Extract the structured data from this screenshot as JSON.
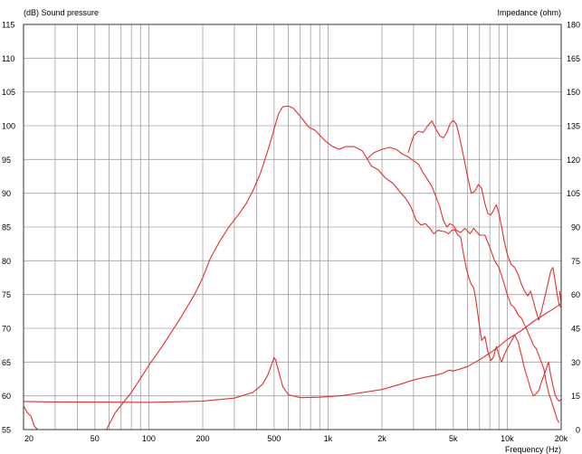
{
  "chart_data": {
    "type": "line",
    "ylabel_left": "(dB)  Sound pressure",
    "ylabel_right": "Impedance  (ohm)",
    "xlabel": "Frequency  (Hz)",
    "x_scale": "log",
    "xlim": [
      20,
      20000
    ],
    "ylim_left": [
      55,
      115
    ],
    "ylim_right": [
      0,
      180
    ],
    "grid": true,
    "line_color": "#e0302e",
    "grid_color": "#a0a0a0",
    "left_ticks": [
      "115",
      "110",
      "105",
      "100",
      "95",
      "90",
      "85",
      "80",
      "75",
      "70",
      "65",
      "60",
      "55"
    ],
    "right_ticks": [
      "180",
      "165",
      "150",
      "135",
      "120",
      "105",
      "90",
      "75",
      "60",
      "45",
      "30",
      "15",
      "0"
    ],
    "x_ticks": [
      {
        "value": 20,
        "label": "20"
      },
      {
        "value": 50,
        "label": "50"
      },
      {
        "value": 100,
        "label": "100"
      },
      {
        "value": 200,
        "label": "200"
      },
      {
        "value": 500,
        "label": "500"
      },
      {
        "value": 1000,
        "label": "1k"
      },
      {
        "value": 2000,
        "label": "2k"
      },
      {
        "value": 5000,
        "label": "5k"
      },
      {
        "value": 10000,
        "label": "10k"
      },
      {
        "value": 20000,
        "label": "20k"
      }
    ],
    "series": [
      {
        "axis": "left",
        "points": [
          [
            58,
            55
          ],
          [
            65,
            57.5
          ],
          [
            80,
            60.5
          ],
          [
            100,
            64.5
          ],
          [
            120,
            67.5
          ],
          [
            150,
            71.5
          ],
          [
            180,
            75
          ],
          [
            200,
            77.5
          ],
          [
            220,
            80.3
          ],
          [
            250,
            83
          ],
          [
            280,
            85
          ],
          [
            320,
            87
          ],
          [
            350,
            88.5
          ],
          [
            380,
            90.3
          ],
          [
            420,
            93
          ],
          [
            470,
            97
          ],
          [
            500,
            99.5
          ],
          [
            530,
            101.8
          ],
          [
            560,
            102.8
          ],
          [
            600,
            102.9
          ],
          [
            640,
            102.6
          ],
          [
            680,
            101.8
          ],
          [
            720,
            101
          ],
          [
            780,
            99.8
          ],
          [
            850,
            99.3
          ],
          [
            900,
            98.6
          ],
          [
            960,
            97.8
          ],
          [
            1050,
            97
          ],
          [
            1150,
            96.5
          ],
          [
            1250,
            96.9
          ],
          [
            1400,
            96.9
          ],
          [
            1550,
            96.3
          ],
          [
            1650,
            95.1
          ],
          [
            1800,
            96
          ],
          [
            2000,
            96.5
          ],
          [
            2200,
            96.8
          ],
          [
            2400,
            96.5
          ],
          [
            2600,
            95.8
          ],
          [
            2800,
            95.4
          ],
          [
            3000,
            94.8
          ],
          [
            3200,
            94.3
          ],
          [
            3400,
            93
          ],
          [
            3600,
            92
          ],
          [
            3800,
            91
          ],
          [
            4000,
            89.5
          ],
          [
            4200,
            88
          ],
          [
            4400,
            86
          ],
          [
            4600,
            85
          ],
          [
            4800,
            85.5
          ],
          [
            5000,
            85.2
          ],
          [
            5200,
            84.5
          ],
          [
            5500,
            84.2
          ],
          [
            5800,
            84.8
          ],
          [
            6200,
            84
          ],
          [
            6500,
            84.8
          ],
          [
            7000,
            83.8
          ],
          [
            7500,
            83.8
          ],
          [
            8000,
            82
          ],
          [
            8500,
            80
          ],
          [
            9000,
            79
          ],
          [
            9500,
            77
          ],
          [
            10000,
            75
          ],
          [
            10500,
            73.5
          ],
          [
            11000,
            73
          ],
          [
            11500,
            72
          ],
          [
            12000,
            71.5
          ],
          [
            12500,
            70.5
          ],
          [
            13000,
            69.5
          ],
          [
            13500,
            68.5
          ],
          [
            14000,
            67.5
          ],
          [
            14500,
            67
          ],
          [
            15000,
            66
          ],
          [
            15500,
            65
          ],
          [
            16000,
            64
          ],
          [
            16500,
            62
          ],
          [
            17000,
            60.5
          ],
          [
            17500,
            59.5
          ],
          [
            18000,
            58.5
          ],
          [
            18500,
            57.5
          ],
          [
            19000,
            56.5
          ],
          [
            19500,
            56
          ]
        ]
      },
      {
        "axis": "left",
        "points": [
          [
            1650,
            95.1
          ],
          [
            1750,
            94
          ],
          [
            1900,
            93.5
          ],
          [
            2100,
            92.2
          ],
          [
            2300,
            91.5
          ],
          [
            2500,
            90.3
          ],
          [
            2700,
            89.3
          ],
          [
            2900,
            88
          ],
          [
            3100,
            86
          ],
          [
            3300,
            85.3
          ],
          [
            3500,
            85.5
          ],
          [
            3700,
            84.8
          ],
          [
            3900,
            84
          ],
          [
            4100,
            84.5
          ],
          [
            4300,
            84.4
          ],
          [
            4500,
            84.3
          ],
          [
            4700,
            84
          ],
          [
            4900,
            84.5
          ],
          [
            5100,
            84.6
          ],
          [
            5300,
            83.8
          ],
          [
            5500,
            83.5
          ],
          [
            5700,
            81
          ],
          [
            5900,
            79
          ],
          [
            6100,
            77.5
          ],
          [
            6300,
            76.5
          ],
          [
            6500,
            76
          ],
          [
            6700,
            74
          ],
          [
            6900,
            71.5
          ],
          [
            7200,
            68.2
          ],
          [
            7500,
            68.8
          ],
          [
            7800,
            66.5
          ],
          [
            8100,
            65.2
          ],
          [
            8400,
            65.8
          ],
          [
            8700,
            67.3
          ],
          [
            9000,
            66
          ],
          [
            9300,
            65
          ],
          [
            9600,
            66
          ],
          [
            10000,
            67
          ],
          [
            10500,
            68
          ],
          [
            11000,
            69
          ],
          [
            11500,
            68
          ],
          [
            12000,
            66
          ],
          [
            12500,
            64
          ],
          [
            13000,
            62.5
          ],
          [
            13500,
            61
          ],
          [
            14000,
            60
          ],
          [
            14500,
            60.3
          ],
          [
            15000,
            60.8
          ],
          [
            15500,
            62
          ],
          [
            16000,
            63
          ],
          [
            16500,
            64
          ],
          [
            17000,
            65
          ],
          [
            17500,
            63
          ],
          [
            18000,
            61.5
          ],
          [
            18500,
            60.2
          ],
          [
            19000,
            59.5
          ],
          [
            19500,
            59.2
          ],
          [
            20000,
            59.5
          ]
        ]
      },
      {
        "axis": "left",
        "points": [
          [
            2800,
            96
          ],
          [
            3000,
            98.5
          ],
          [
            3200,
            99.2
          ],
          [
            3400,
            99
          ],
          [
            3600,
            100
          ],
          [
            3800,
            100.7
          ],
          [
            4000,
            99.5
          ],
          [
            4200,
            98.5
          ],
          [
            4400,
            98.2
          ],
          [
            4600,
            99
          ],
          [
            4800,
            100.3
          ],
          [
            5000,
            100.8
          ],
          [
            5200,
            100.2
          ],
          [
            5400,
            98.5
          ],
          [
            5700,
            95.5
          ],
          [
            6000,
            92.5
          ],
          [
            6300,
            90
          ],
          [
            6600,
            90.3
          ],
          [
            6900,
            91.3
          ],
          [
            7200,
            90.7
          ],
          [
            7500,
            88.5
          ],
          [
            7800,
            87
          ],
          [
            8100,
            86.8
          ],
          [
            8400,
            87.5
          ],
          [
            8700,
            88.3
          ],
          [
            9000,
            87
          ],
          [
            9300,
            85
          ],
          [
            9600,
            83
          ],
          [
            10000,
            81
          ],
          [
            10500,
            79.5
          ],
          [
            11000,
            79
          ],
          [
            11500,
            78
          ],
          [
            12000,
            76.5
          ],
          [
            12500,
            75.5
          ],
          [
            13000,
            74.8
          ],
          [
            13500,
            75.5
          ],
          [
            14000,
            74
          ],
          [
            14500,
            72.5
          ],
          [
            15000,
            71.2
          ],
          [
            15500,
            72.5
          ],
          [
            16000,
            74
          ],
          [
            16500,
            75.5
          ],
          [
            17000,
            77
          ],
          [
            17500,
            78.5
          ],
          [
            18000,
            79
          ],
          [
            18500,
            77
          ],
          [
            19000,
            75
          ],
          [
            19500,
            73.5
          ],
          [
            20000,
            73
          ]
        ]
      },
      {
        "axis": "left",
        "points": [
          [
            19600,
            75.5
          ],
          [
            19800,
            74.5
          ],
          [
            20000,
            73.5
          ]
        ]
      },
      {
        "axis": "right",
        "points": [
          [
            20,
            12.5
          ],
          [
            30,
            12.3
          ],
          [
            50,
            12.2
          ],
          [
            100,
            12.1
          ],
          [
            200,
            12.6
          ],
          [
            300,
            14
          ],
          [
            380,
            16.5
          ],
          [
            430,
            20
          ],
          [
            460,
            24
          ],
          [
            480,
            28
          ],
          [
            500,
            32
          ],
          [
            510,
            31
          ],
          [
            530,
            26
          ],
          [
            560,
            19
          ],
          [
            600,
            15.5
          ],
          [
            700,
            14.2
          ],
          [
            900,
            14.4
          ],
          [
            1200,
            15.1
          ],
          [
            1600,
            16.6
          ],
          [
            2000,
            17.8
          ],
          [
            2500,
            20
          ],
          [
            3000,
            22
          ],
          [
            3500,
            23.3
          ],
          [
            4000,
            24.2
          ],
          [
            4400,
            25.1
          ],
          [
            4600,
            26
          ],
          [
            4800,
            26.4
          ],
          [
            5000,
            26
          ],
          [
            5500,
            27
          ],
          [
            6000,
            28
          ],
          [
            7000,
            31
          ],
          [
            8000,
            34
          ],
          [
            9000,
            37
          ],
          [
            10000,
            40
          ],
          [
            12000,
            44
          ],
          [
            14000,
            48
          ],
          [
            16000,
            51
          ],
          [
            18000,
            53.5
          ],
          [
            20000,
            56
          ]
        ]
      },
      {
        "axis": "left",
        "points": [
          [
            20,
            58.5
          ],
          [
            21,
            57.5
          ],
          [
            22,
            57
          ],
          [
            23,
            55.5
          ],
          [
            24,
            55
          ]
        ]
      }
    ]
  }
}
